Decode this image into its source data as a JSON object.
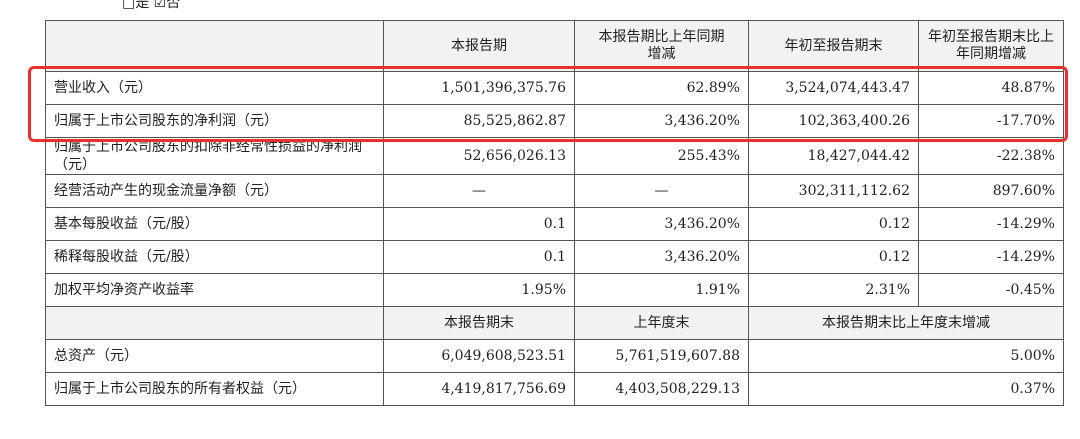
{
  "top_note": "□是 ☑否",
  "table": {
    "header": [
      "",
      "本报告期",
      "本报告期比上年同期增减",
      "年初至报告期末",
      "年初至报告期末比上年同期增减"
    ],
    "rows": [
      [
        "营业收入（元）",
        "1,501,396,375.76",
        "62.89%",
        "3,524,074,443.47",
        "48.87%"
      ],
      [
        "归属于上市公司股东的净利润（元）",
        "85,525,862.87",
        "3,436.20%",
        "102,363,400.26",
        "-17.70%"
      ],
      [
        "归属于上市公司股东的扣除非经常性损益的净利润（元）",
        "52,656,026.13",
        "255.43%",
        "18,427,044.42",
        "-22.38%"
      ],
      [
        "经营活动产生的现金流量净额（元）",
        "—",
        "—",
        "302,311,112.62",
        "897.60%"
      ],
      [
        "基本每股收益（元/股）",
        "0.1",
        "3,436.20%",
        "0.12",
        "-14.29%"
      ],
      [
        "稀释每股收益（元/股）",
        "0.1",
        "3,436.20%",
        "0.12",
        "-14.29%"
      ],
      [
        "加权平均净资产收益率",
        "1.95%",
        "1.91%",
        "2.31%",
        "-0.45%"
      ]
    ],
    "header2": [
      "本报告期末",
      "上年度末",
      "本报告期末比上年度末增减"
    ],
    "rows2": [
      [
        "总资产（元）",
        "6,049,608,523.51",
        "5,761,519,607.88",
        "5.00%"
      ],
      [
        "归属于上市公司股东的所有者权益（元）",
        "4,419,817,756.69",
        "4,403,508,229.13",
        "0.37%"
      ]
    ]
  }
}
